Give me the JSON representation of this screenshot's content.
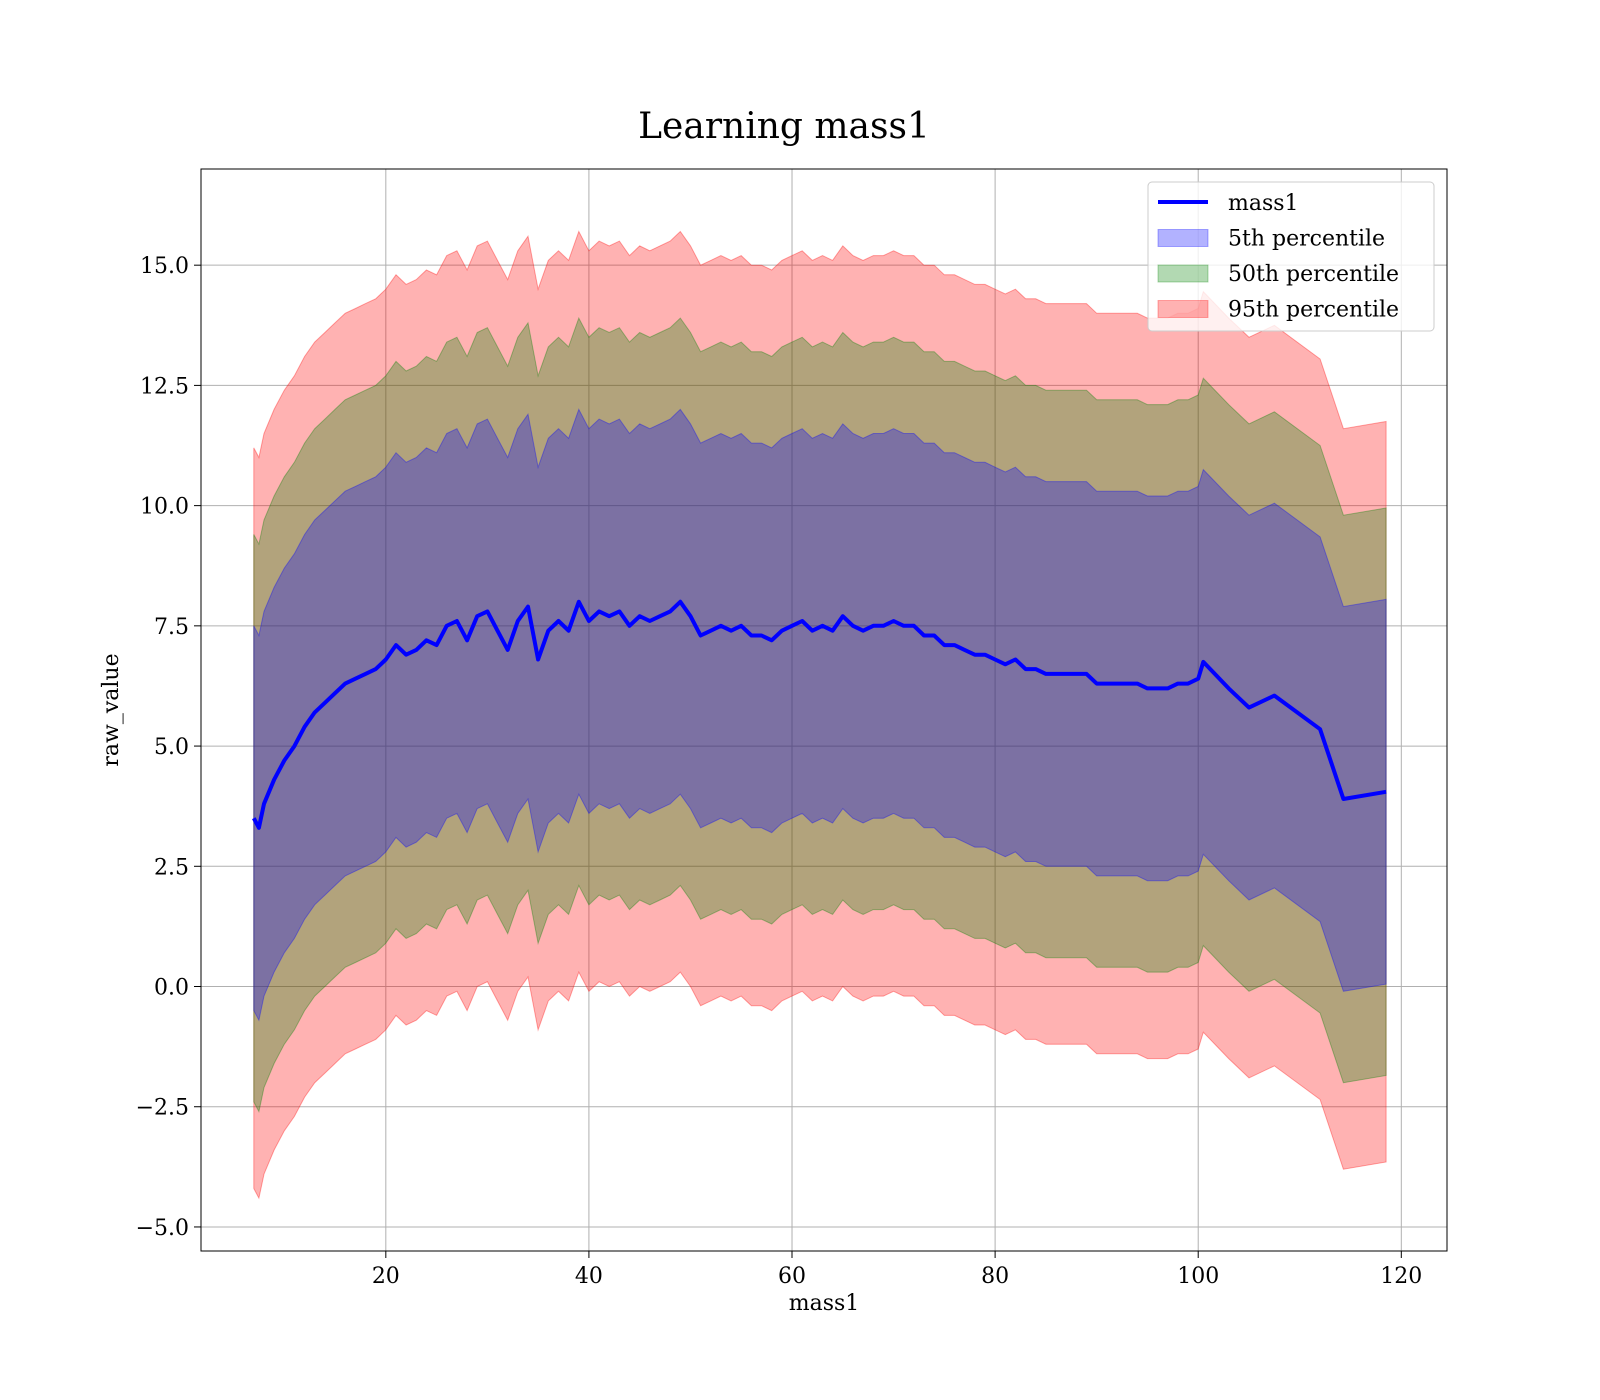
{
  "chart_data": {
    "type": "line",
    "title": "Learning mass1",
    "xlabel": "mass1",
    "ylabel": "raw_value",
    "xlim": [
      1.8,
      124.5
    ],
    "ylim": [
      -5.5,
      17.0
    ],
    "xticks": [
      20,
      40,
      60,
      80,
      100,
      120
    ],
    "yticks": [
      -5.0,
      -2.5,
      0.0,
      2.5,
      5.0,
      7.5,
      10.0,
      12.5,
      15.0
    ],
    "xtick_labels": [
      "20",
      "40",
      "60",
      "80",
      "100",
      "120"
    ],
    "ytick_labels": [
      "−5.0",
      "−2.5",
      "0.0",
      "2.5",
      "5.0",
      "7.5",
      "10.0",
      "12.5",
      "15.0"
    ],
    "grid": true,
    "legend_position": "top-right",
    "legend": [
      {
        "label": "mass1",
        "kind": "line",
        "color": "#0000ff"
      },
      {
        "label": "5th percentile",
        "kind": "patch",
        "color": "#0000ff"
      },
      {
        "label": "50th percentile",
        "kind": "patch",
        "color": "#008000"
      },
      {
        "label": "95th percentile",
        "kind": "patch",
        "color": "#ff0000"
      }
    ],
    "series": [
      {
        "name": "mass1",
        "color": "#0000ff",
        "x": [
          7.0,
          7.5,
          8,
          9,
          10,
          11,
          12,
          13,
          14,
          15,
          16,
          17,
          18,
          19,
          20,
          21,
          22,
          23,
          24,
          25,
          26,
          27,
          28,
          29,
          30,
          31,
          32,
          33,
          34,
          35,
          36,
          37,
          38,
          39,
          40,
          41,
          42,
          43,
          44,
          45,
          46,
          47,
          48,
          49,
          50,
          51,
          52,
          53,
          54,
          55,
          56,
          57,
          58,
          59,
          60,
          61,
          62,
          63,
          64,
          65,
          66,
          67,
          68,
          69,
          70,
          71,
          72,
          73,
          74,
          75,
          76,
          77,
          78,
          79,
          80,
          81,
          82,
          83,
          84,
          85,
          86,
          87,
          88,
          89,
          90,
          91,
          92,
          93,
          94,
          95,
          96,
          97,
          98,
          99,
          100,
          100.5,
          103,
          105,
          107.5,
          112,
          114.3,
          118.5
        ],
        "y": [
          3.5,
          3.3,
          3.8,
          4.3,
          4.7,
          5.0,
          5.4,
          5.7,
          5.9,
          6.1,
          6.3,
          6.4,
          6.5,
          6.6,
          6.8,
          7.1,
          6.9,
          7.0,
          7.2,
          7.1,
          7.5,
          7.6,
          7.2,
          7.7,
          7.8,
          7.4,
          7.0,
          7.6,
          7.9,
          6.8,
          7.4,
          7.6,
          7.4,
          8.0,
          7.6,
          7.8,
          7.7,
          7.8,
          7.5,
          7.7,
          7.6,
          7.7,
          7.8,
          8.0,
          7.7,
          7.3,
          7.4,
          7.5,
          7.4,
          7.5,
          7.3,
          7.3,
          7.2,
          7.4,
          7.5,
          7.6,
          7.4,
          7.5,
          7.4,
          7.7,
          7.5,
          7.4,
          7.5,
          7.5,
          7.6,
          7.5,
          7.5,
          7.3,
          7.3,
          7.1,
          7.1,
          7.0,
          6.9,
          6.9,
          6.8,
          6.7,
          6.8,
          6.6,
          6.6,
          6.5,
          6.5,
          6.5,
          6.5,
          6.5,
          6.3,
          6.3,
          6.3,
          6.3,
          6.3,
          6.2,
          6.2,
          6.2,
          6.3,
          6.3,
          6.4,
          6.75,
          6.2,
          5.8,
          6.05,
          5.35,
          3.9,
          4.05
        ]
      },
      {
        "name": "5th percentile",
        "color": "#0000ff",
        "alpha": 0.3,
        "spread": 4.0
      },
      {
        "name": "50th percentile",
        "color": "#008000",
        "alpha": 0.3,
        "spread": 5.9
      },
      {
        "name": "95th percentile",
        "color": "#ff0000",
        "alpha": 0.3,
        "spread": 7.7
      }
    ]
  }
}
